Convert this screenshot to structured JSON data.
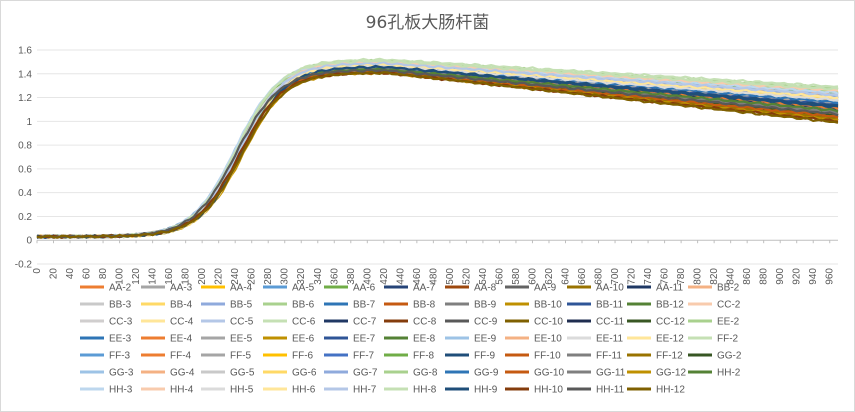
{
  "chart_data": {
    "type": "line",
    "title": "96孔板大肠杆菌",
    "xlabel": "",
    "ylabel": "",
    "ylim": [
      -0.2,
      1.6
    ],
    "yticks": [
      "-0.2",
      "0",
      "0.2",
      "0.4",
      "0.6",
      "0.8",
      "1",
      "1.2",
      "1.4",
      "1.6"
    ],
    "xlim": [
      0,
      970
    ],
    "xticks": [
      "0",
      "20",
      "40",
      "60",
      "80",
      "100",
      "120",
      "140",
      "160",
      "180",
      "200",
      "220",
      "240",
      "260",
      "280",
      "300",
      "320",
      "340",
      "360",
      "380",
      "400",
      "420",
      "440",
      "460",
      "480",
      "500",
      "520",
      "540",
      "560",
      "580",
      "600",
      "620",
      "640",
      "660",
      "680",
      "700",
      "720",
      "740",
      "760",
      "780",
      "800",
      "820",
      "840",
      "860",
      "880",
      "900",
      "920",
      "940",
      "960"
    ],
    "grid": true,
    "legend_position": "bottom",
    "series": [
      {
        "name": "AA-2",
        "color": "#ED7D31",
        "final": 1.12,
        "plateau": 1.45
      },
      {
        "name": "AA-3",
        "color": "#A5A5A5",
        "final": 1.15,
        "plateau": 1.46
      },
      {
        "name": "AA-4",
        "color": "#FFC000",
        "final": 1.18,
        "plateau": 1.47
      },
      {
        "name": "AA-5",
        "color": "#5B9BD5",
        "final": 1.2,
        "plateau": 1.48
      },
      {
        "name": "AA-6",
        "color": "#70AD47",
        "final": 1.22,
        "plateau": 1.49
      },
      {
        "name": "AA-7",
        "color": "#264478",
        "final": 1.1,
        "plateau": 1.45
      },
      {
        "name": "AA-8",
        "color": "#9E480E",
        "final": 1.05,
        "plateau": 1.43
      },
      {
        "name": "AA-9",
        "color": "#636363",
        "final": 1.08,
        "plateau": 1.44
      },
      {
        "name": "AA-10",
        "color": "#997300",
        "final": 1.03,
        "plateau": 1.42
      },
      {
        "name": "AA-11",
        "color": "#1F3864",
        "final": 1.13,
        "plateau": 1.46
      },
      {
        "name": "BB-2",
        "color": "#F4B183",
        "final": 1.24,
        "plateau": 1.5
      },
      {
        "name": "BB-3",
        "color": "#C9C9C9",
        "final": 1.17,
        "plateau": 1.47
      },
      {
        "name": "BB-4",
        "color": "#FFD966",
        "final": 1.16,
        "plateau": 1.47
      },
      {
        "name": "BB-5",
        "color": "#8FAADC",
        "final": 1.21,
        "plateau": 1.49
      },
      {
        "name": "BB-6",
        "color": "#A9D18E",
        "final": 1.26,
        "plateau": 1.5
      },
      {
        "name": "BB-7",
        "color": "#2E75B6",
        "final": 1.19,
        "plateau": 1.48
      },
      {
        "name": "BB-8",
        "color": "#C55A11",
        "final": 1.07,
        "plateau": 1.44
      },
      {
        "name": "BB-9",
        "color": "#7F7F7F",
        "final": 1.09,
        "plateau": 1.44
      },
      {
        "name": "BB-10",
        "color": "#BF9000",
        "final": 1.04,
        "plateau": 1.43
      },
      {
        "name": "BB-11",
        "color": "#2F5597",
        "final": 1.14,
        "plateau": 1.46
      },
      {
        "name": "BB-12",
        "color": "#548235",
        "final": 1.06,
        "plateau": 1.43
      },
      {
        "name": "CC-2",
        "color": "#F8CBAD",
        "final": 1.25,
        "plateau": 1.5
      },
      {
        "name": "CC-3",
        "color": "#D0CECE",
        "final": 1.18,
        "plateau": 1.47
      },
      {
        "name": "CC-4",
        "color": "#FFE699",
        "final": 1.2,
        "plateau": 1.48
      },
      {
        "name": "CC-5",
        "color": "#B4C7E7",
        "final": 1.23,
        "plateau": 1.49
      },
      {
        "name": "CC-6",
        "color": "#C5E0B4",
        "final": 1.27,
        "plateau": 1.51
      },
      {
        "name": "CC-7",
        "color": "#203864",
        "final": 1.11,
        "plateau": 1.45
      },
      {
        "name": "CC-8",
        "color": "#843C0C",
        "final": 1.02,
        "plateau": 1.42
      },
      {
        "name": "CC-9",
        "color": "#595959",
        "final": 1.05,
        "plateau": 1.43
      },
      {
        "name": "CC-10",
        "color": "#7F6000",
        "final": 1.01,
        "plateau": 1.42
      },
      {
        "name": "CC-11",
        "color": "#1F2D50",
        "final": 1.12,
        "plateau": 1.45
      },
      {
        "name": "CC-12",
        "color": "#385723",
        "final": 1.04,
        "plateau": 1.42
      },
      {
        "name": "EE-2",
        "color": "#A9D18E",
        "final": 1.28,
        "plateau": 1.51
      },
      {
        "name": "EE-3",
        "color": "#2E75B6",
        "final": 1.17,
        "plateau": 1.47
      },
      {
        "name": "EE-4",
        "color": "#ED7D31",
        "final": 1.13,
        "plateau": 1.46
      },
      {
        "name": "EE-5",
        "color": "#A5A5A5",
        "final": 1.15,
        "plateau": 1.46
      },
      {
        "name": "EE-6",
        "color": "#BF9000",
        "final": 1.06,
        "plateau": 1.43
      },
      {
        "name": "EE-7",
        "color": "#2F5597",
        "final": 1.14,
        "plateau": 1.46
      },
      {
        "name": "EE-8",
        "color": "#548235",
        "final": 1.08,
        "plateau": 1.44
      },
      {
        "name": "EE-9",
        "color": "#9DC3E6",
        "final": 1.22,
        "plateau": 1.49
      },
      {
        "name": "EE-10",
        "color": "#F4B183",
        "final": 1.23,
        "plateau": 1.49
      },
      {
        "name": "EE-11",
        "color": "#DBDBDB",
        "final": 1.19,
        "plateau": 1.48
      },
      {
        "name": "EE-12",
        "color": "#FFE699",
        "final": 1.21,
        "plateau": 1.48
      },
      {
        "name": "FF-2",
        "color": "#C5E0B4",
        "final": 1.29,
        "plateau": 1.52
      },
      {
        "name": "FF-3",
        "color": "#5B9BD5",
        "final": 1.2,
        "plateau": 1.48
      },
      {
        "name": "FF-4",
        "color": "#ED7D31",
        "final": 1.11,
        "plateau": 1.45
      },
      {
        "name": "FF-5",
        "color": "#A5A5A5",
        "final": 1.16,
        "plateau": 1.47
      },
      {
        "name": "FF-6",
        "color": "#FFC000",
        "final": 1.18,
        "plateau": 1.47
      },
      {
        "name": "FF-7",
        "color": "#4472C4",
        "final": 1.17,
        "plateau": 1.47
      },
      {
        "name": "FF-8",
        "color": "#70AD47",
        "final": 1.24,
        "plateau": 1.5
      },
      {
        "name": "FF-9",
        "color": "#1F4E79",
        "final": 1.12,
        "plateau": 1.45
      },
      {
        "name": "FF-10",
        "color": "#C55A11",
        "final": 1.03,
        "plateau": 1.42
      },
      {
        "name": "FF-11",
        "color": "#7F7F7F",
        "final": 1.07,
        "plateau": 1.44
      },
      {
        "name": "FF-12",
        "color": "#997300",
        "final": 1.02,
        "plateau": 1.42
      },
      {
        "name": "GG-2",
        "color": "#375623",
        "final": 1.05,
        "plateau": 1.43
      },
      {
        "name": "GG-3",
        "color": "#9DC3E6",
        "final": 1.23,
        "plateau": 1.49
      },
      {
        "name": "GG-4",
        "color": "#F4B183",
        "final": 1.22,
        "plateau": 1.49
      },
      {
        "name": "GG-5",
        "color": "#C9C9C9",
        "final": 1.17,
        "plateau": 1.47
      },
      {
        "name": "GG-6",
        "color": "#FFD966",
        "final": 1.19,
        "plateau": 1.48
      },
      {
        "name": "GG-7",
        "color": "#8FAADC",
        "final": 1.21,
        "plateau": 1.48
      },
      {
        "name": "GG-8",
        "color": "#A9D18E",
        "final": 1.25,
        "plateau": 1.5
      },
      {
        "name": "GG-9",
        "color": "#2E75B6",
        "final": 1.16,
        "plateau": 1.47
      },
      {
        "name": "GG-10",
        "color": "#C55A11",
        "final": 1.04,
        "plateau": 1.42
      },
      {
        "name": "GG-11",
        "color": "#7F7F7F",
        "final": 1.08,
        "plateau": 1.44
      },
      {
        "name": "GG-12",
        "color": "#BF9000",
        "final": 1.01,
        "plateau": 1.41
      },
      {
        "name": "HH-2",
        "color": "#548235",
        "final": 1.09,
        "plateau": 1.44
      },
      {
        "name": "HH-3",
        "color": "#BDD7EE",
        "final": 1.24,
        "plateau": 1.5
      },
      {
        "name": "HH-4",
        "color": "#F8CBAD",
        "final": 1.26,
        "plateau": 1.5
      },
      {
        "name": "HH-5",
        "color": "#DBDBDB",
        "final": 1.18,
        "plateau": 1.47
      },
      {
        "name": "HH-6",
        "color": "#FFE699",
        "final": 1.2,
        "plateau": 1.48
      },
      {
        "name": "HH-7",
        "color": "#B4C7E7",
        "final": 1.22,
        "plateau": 1.49
      },
      {
        "name": "HH-8",
        "color": "#C5E0B4",
        "final": 1.27,
        "plateau": 1.51
      },
      {
        "name": "HH-9",
        "color": "#1F4E79",
        "final": 1.13,
        "plateau": 1.46
      },
      {
        "name": "HH-10",
        "color": "#843C0C",
        "final": 1.0,
        "plateau": 1.41
      },
      {
        "name": "HH-11",
        "color": "#595959",
        "final": 1.06,
        "plateau": 1.43
      },
      {
        "name": "HH-12",
        "color": "#7F6000",
        "final": 0.99,
        "plateau": 1.41
      }
    ]
  }
}
